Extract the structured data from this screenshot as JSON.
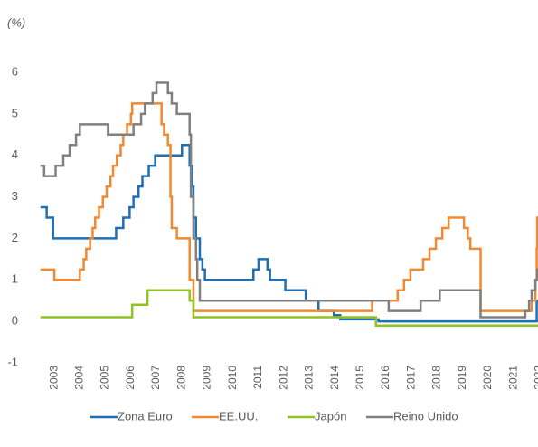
{
  "chart_data": {
    "type": "line",
    "step": "post",
    "y_label": "(%)",
    "xlim": [
      2003,
      2022.45
    ],
    "ylim": [
      -1,
      6
    ],
    "yticks": [
      -1,
      0,
      1,
      2,
      3,
      4,
      5,
      6
    ],
    "grid": false,
    "legend": "bottom",
    "xticks": [
      {
        "value": 2003.5,
        "label": "2003"
      },
      {
        "value": 2004.5,
        "label": "2004"
      },
      {
        "value": 2005.5,
        "label": "2005"
      },
      {
        "value": 2006.5,
        "label": "2006"
      },
      {
        "value": 2007.5,
        "label": "2007"
      },
      {
        "value": 2008.5,
        "label": "2008"
      },
      {
        "value": 2009.5,
        "label": "2009"
      },
      {
        "value": 2010.5,
        "label": "2010"
      },
      {
        "value": 2011.5,
        "label": "2011"
      },
      {
        "value": 2012.5,
        "label": "2012"
      },
      {
        "value": 2013.5,
        "label": "2013"
      },
      {
        "value": 2014.5,
        "label": "2014"
      },
      {
        "value": 2015.5,
        "label": "2015"
      },
      {
        "value": 2016.5,
        "label": "2016"
      },
      {
        "value": 2017.5,
        "label": "2017"
      },
      {
        "value": 2018.5,
        "label": "2018"
      },
      {
        "value": 2019.5,
        "label": "2019"
      },
      {
        "value": 2020.5,
        "label": "2020"
      },
      {
        "value": 2021.5,
        "label": "2021"
      },
      {
        "value": 2022.5,
        "label": "2022"
      }
    ],
    "series": [
      {
        "name": "Zona Euro",
        "color": "#1f6fb4",
        "x": [
          2003,
          2003.2,
          2003.45,
          2005.92,
          2006.2,
          2006.45,
          2006.6,
          2006.8,
          2006.95,
          2007.2,
          2007.45,
          2008.5,
          2008.8,
          2008.9,
          2008.95,
          2009.05,
          2009.2,
          2009.3,
          2009.4,
          2011.3,
          2011.5,
          2011.85,
          2011.95,
          2012.55,
          2013.35,
          2013.85,
          2014.45,
          2014.7,
          2016.2,
          2022.4
        ],
        "values": [
          2.75,
          2.5,
          2.0,
          2.25,
          2.5,
          2.75,
          3.0,
          3.25,
          3.5,
          3.75,
          4.0,
          4.25,
          3.75,
          3.25,
          2.5,
          2.0,
          1.5,
          1.25,
          1.0,
          1.25,
          1.5,
          1.25,
          1.0,
          0.75,
          0.5,
          0.25,
          0.15,
          0.05,
          0.0,
          0.5
        ]
      },
      {
        "name": "EE.UU.",
        "color": "#f08a32",
        "x": [
          2003,
          2003.5,
          2004.5,
          2004.65,
          2004.75,
          2004.9,
          2005.0,
          2005.1,
          2005.25,
          2005.4,
          2005.55,
          2005.7,
          2005.8,
          2005.95,
          2006.1,
          2006.2,
          2006.35,
          2006.5,
          2006.55,
          2007.7,
          2007.8,
          2007.95,
          2008.05,
          2008.1,
          2008.3,
          2008.8,
          2008.95,
          2015.95,
          2016.95,
          2017.2,
          2017.45,
          2017.95,
          2018.2,
          2018.45,
          2018.7,
          2018.95,
          2019.55,
          2019.7,
          2019.8,
          2020.2,
          2022.2,
          2022.35,
          2022.4,
          2022.42
        ],
        "values": [
          1.25,
          1.0,
          1.25,
          1.5,
          1.75,
          2.0,
          2.25,
          2.5,
          2.75,
          3.0,
          3.25,
          3.5,
          3.75,
          4.0,
          4.25,
          4.5,
          4.75,
          5.0,
          5.25,
          4.75,
          4.5,
          4.25,
          3.0,
          2.25,
          2.0,
          1.0,
          0.25,
          0.5,
          0.75,
          1.0,
          1.25,
          1.5,
          1.75,
          2.0,
          2.25,
          2.5,
          2.25,
          2.0,
          1.75,
          0.25,
          0.5,
          1.0,
          1.75,
          2.5
        ]
      },
      {
        "name": "Japón",
        "color": "#8fc31f",
        "x": [
          2003,
          2006.55,
          2007.15,
          2008.8,
          2008.95,
          2016.1
        ],
        "values": [
          0.1,
          0.4,
          0.75,
          0.5,
          0.1,
          -0.1
        ]
      },
      {
        "name": "Reino Unido",
        "color": "#808080",
        "x": [
          2003,
          2003.1,
          2003.55,
          2003.85,
          2004.1,
          2004.35,
          2004.5,
          2005.6,
          2006.6,
          2006.9,
          2007.05,
          2007.35,
          2007.5,
          2007.95,
          2008.1,
          2008.3,
          2008.8,
          2008.85,
          2008.95,
          2009.05,
          2009.1,
          2009.2,
          2016.6,
          2017.85,
          2018.6,
          2020.2,
          2021.95,
          2022.1,
          2022.2,
          2022.35,
          2022.42
        ],
        "values": [
          3.75,
          3.5,
          3.75,
          4.0,
          4.25,
          4.5,
          4.75,
          4.5,
          4.75,
          5.0,
          5.25,
          5.5,
          5.75,
          5.5,
          5.25,
          5.0,
          4.5,
          3.0,
          2.0,
          1.5,
          1.0,
          0.5,
          0.25,
          0.5,
          0.75,
          0.1,
          0.25,
          0.5,
          0.75,
          1.0,
          1.25
        ]
      }
    ]
  }
}
